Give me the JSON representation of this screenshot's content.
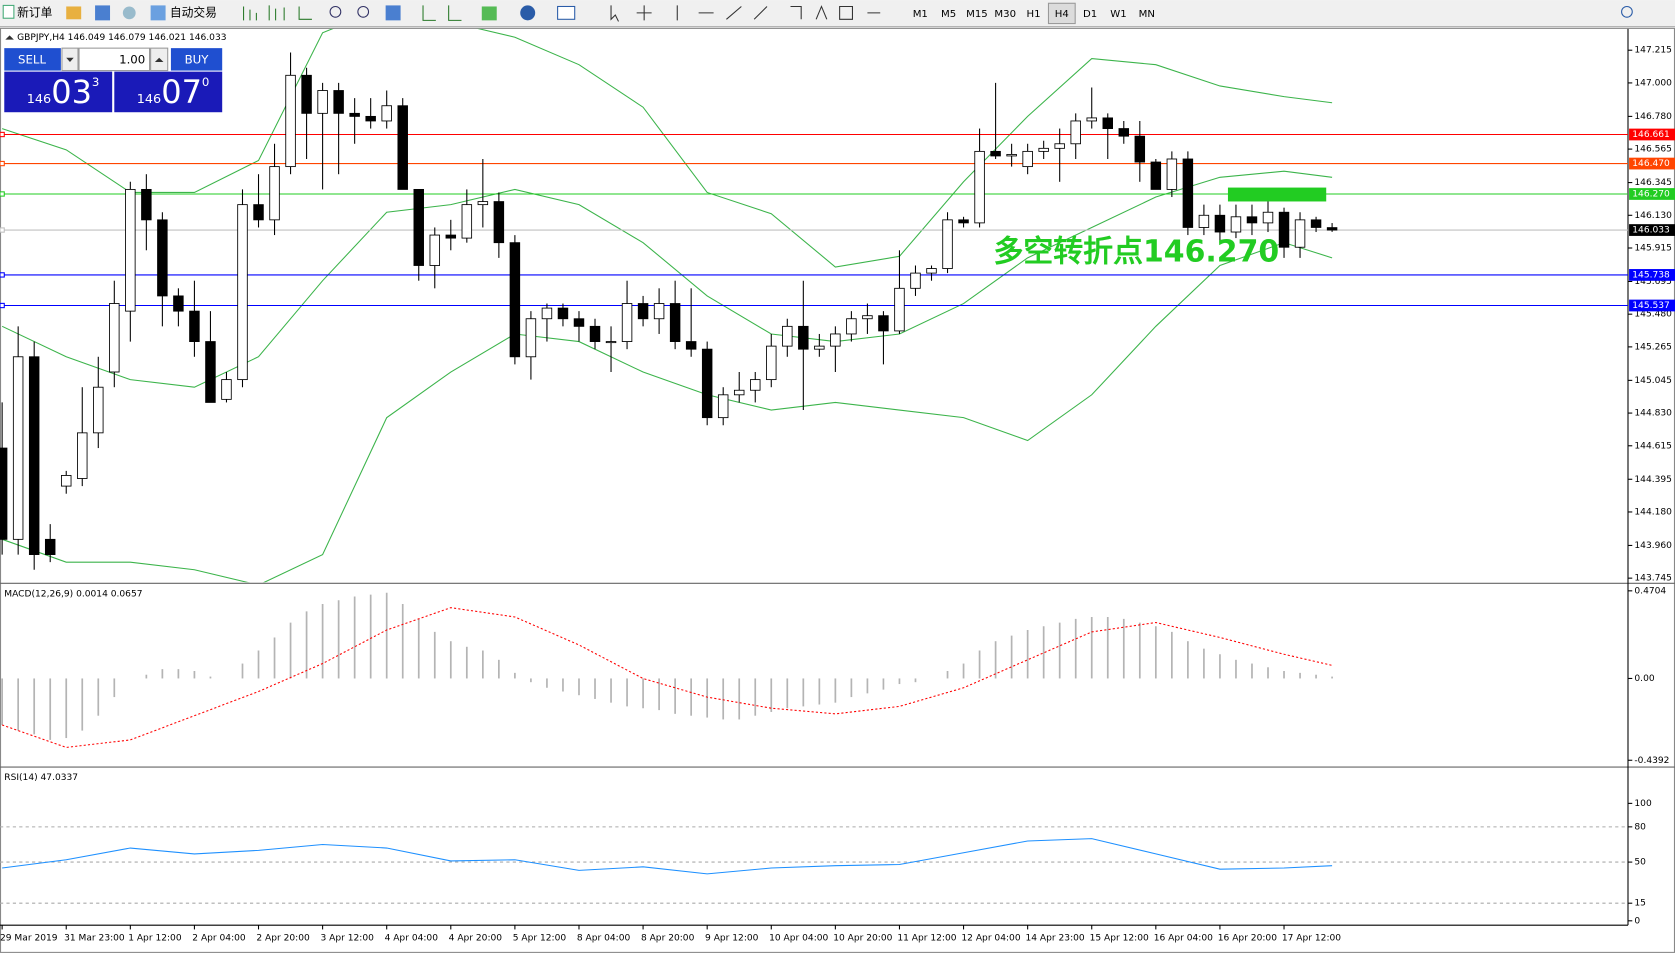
{
  "toolbar": {
    "new_order": "新订单",
    "auto_trading": "自动交易",
    "timeframes": [
      "M1",
      "M5",
      "M15",
      "M30",
      "H1",
      "H4",
      "D1",
      "W1",
      "MN"
    ],
    "active_timeframe": "H4"
  },
  "trade_panel": {
    "sell_label": "SELL",
    "buy_label": "BUY",
    "lot": "1.00",
    "sell_price": {
      "prefix": "146",
      "big": "03",
      "small": "3"
    },
    "buy_price": {
      "prefix": "146",
      "big": "07",
      "small": "0"
    }
  },
  "chart_data": [
    {
      "type": "candlestick",
      "title": "GBPJPY,H4 146.049 146.079 146.021 146.033",
      "categories": [
        "29 Mar 2019",
        null,
        null,
        null,
        "31 Mar 23:00",
        null,
        null,
        null,
        "1 Apr 12:00",
        null,
        null,
        null,
        "2 Apr 04:00",
        null,
        null,
        null,
        "2 Apr 20:00",
        null,
        null,
        null,
        "3 Apr 12:00",
        null,
        null,
        null,
        "4 Apr 04:00",
        null,
        null,
        null,
        "4 Apr 20:00",
        null,
        null,
        null,
        "5 Apr 12:00",
        null,
        null,
        null,
        "8 Apr 04:00",
        null,
        null,
        null,
        "8 Apr 20:00",
        null,
        null,
        null,
        "9 Apr 12:00",
        null,
        null,
        null,
        "10 Apr 04:00",
        null,
        null,
        null,
        "10 Apr 20:00",
        null,
        null,
        null,
        "11 Apr 12:00",
        null,
        null,
        null,
        "12 Apr 04:00",
        null,
        null,
        null,
        "14 Apr 23:00",
        null,
        null,
        null,
        "15 Apr 12:00",
        null,
        null,
        null,
        "16 Apr 04:00",
        null,
        null,
        null,
        "16 Apr 20:00",
        null,
        null,
        null,
        "17 Apr 12:00",
        null,
        null,
        null
      ],
      "open": [
        144.6,
        144.0,
        145.2,
        144.0,
        144.35,
        144.4,
        144.7,
        145.1,
        145.5,
        146.3,
        146.1,
        145.6,
        145.5,
        145.3,
        144.92,
        145.05,
        146.2,
        146.1,
        146.45,
        147.05,
        146.8,
        146.95,
        146.8,
        146.78,
        146.75,
        146.85,
        146.3,
        145.8,
        146.0,
        145.98,
        146.2,
        146.22,
        145.95,
        145.2,
        145.45,
        145.52,
        145.45,
        145.4,
        145.3,
        145.3,
        145.55,
        145.45,
        145.55,
        145.3,
        145.25,
        144.8,
        144.95,
        144.98,
        145.05,
        145.27,
        145.4,
        145.25,
        145.27,
        145.35,
        145.45,
        145.47,
        145.37,
        145.65,
        145.75,
        145.78,
        146.1,
        146.08,
        146.55,
        146.52,
        146.45,
        146.55,
        146.57,
        146.6,
        146.75,
        146.77,
        146.7,
        146.65,
        146.48,
        146.3,
        146.5,
        146.05,
        146.13,
        146.02,
        146.12,
        146.08,
        146.15,
        145.92,
        146.1,
        146.049
      ],
      "high": [
        144.9,
        145.4,
        145.3,
        144.1,
        144.45,
        145.0,
        145.2,
        145.7,
        146.35,
        146.4,
        146.15,
        145.65,
        145.7,
        145.5,
        145.1,
        146.3,
        146.4,
        146.6,
        147.2,
        147.1,
        147.0,
        147.0,
        146.9,
        146.9,
        146.95,
        146.9,
        146.3,
        146.05,
        146.1,
        146.3,
        146.5,
        146.28,
        146.0,
        145.5,
        145.55,
        145.55,
        145.5,
        145.45,
        145.4,
        145.7,
        145.6,
        145.65,
        145.7,
        145.65,
        145.3,
        145.0,
        145.1,
        145.1,
        145.35,
        145.45,
        145.7,
        145.35,
        145.4,
        145.5,
        145.55,
        145.5,
        145.9,
        145.8,
        145.8,
        146.15,
        146.12,
        146.7,
        147.0,
        146.6,
        146.6,
        146.62,
        146.7,
        146.8,
        146.97,
        146.8,
        146.75,
        146.75,
        146.5,
        146.55,
        146.55,
        146.2,
        146.2,
        146.2,
        146.2,
        146.25,
        146.18,
        146.15,
        146.12,
        146.079
      ],
      "low": [
        143.9,
        143.9,
        143.8,
        143.85,
        144.3,
        144.35,
        144.6,
        145.0,
        145.3,
        145.9,
        145.4,
        145.4,
        145.2,
        144.9,
        144.9,
        145.0,
        146.05,
        146.0,
        146.4,
        146.5,
        146.3,
        146.4,
        146.6,
        146.7,
        146.7,
        146.3,
        145.7,
        145.65,
        145.9,
        145.95,
        146.05,
        145.85,
        145.15,
        145.05,
        145.3,
        145.4,
        145.3,
        145.25,
        145.1,
        145.25,
        145.4,
        145.35,
        145.25,
        145.2,
        144.75,
        144.75,
        144.9,
        144.9,
        145.0,
        145.2,
        144.85,
        145.2,
        145.1,
        145.3,
        145.35,
        145.15,
        145.35,
        145.6,
        145.7,
        145.75,
        146.05,
        146.05,
        146.5,
        146.45,
        146.4,
        146.5,
        146.35,
        146.5,
        146.7,
        146.5,
        146.6,
        146.35,
        146.3,
        146.25,
        146.0,
        146.0,
        145.95,
        145.98,
        146.0,
        146.02,
        145.85,
        145.85,
        146.02,
        146.021
      ],
      "close": [
        144.0,
        145.2,
        143.9,
        143.9,
        144.42,
        144.7,
        145.0,
        145.55,
        146.3,
        146.1,
        145.6,
        145.5,
        145.3,
        144.9,
        145.05,
        146.2,
        146.1,
        146.45,
        147.05,
        146.8,
        146.95,
        146.8,
        146.78,
        146.75,
        146.85,
        146.3,
        145.8,
        146.0,
        145.98,
        146.2,
        146.22,
        145.95,
        145.2,
        145.45,
        145.52,
        145.45,
        145.4,
        145.3,
        145.3,
        145.55,
        145.45,
        145.55,
        145.3,
        145.25,
        144.8,
        144.95,
        144.98,
        145.05,
        145.27,
        145.4,
        145.25,
        145.27,
        145.35,
        145.45,
        145.47,
        145.37,
        145.65,
        145.75,
        145.78,
        146.1,
        146.08,
        146.55,
        146.52,
        146.53,
        146.55,
        146.57,
        146.6,
        146.75,
        146.77,
        146.7,
        146.65,
        146.48,
        146.3,
        146.5,
        146.05,
        146.13,
        146.02,
        146.12,
        146.08,
        146.15,
        145.92,
        146.1,
        146.05,
        146.033
      ],
      "up_color": "#ffffff",
      "down_color": "#000000",
      "bands": {
        "x": [
          0,
          4,
          8,
          12,
          16,
          20,
          24,
          28,
          32,
          36,
          40,
          44,
          48,
          52,
          56,
          60,
          64,
          68,
          72,
          76,
          80,
          83
        ],
        "series": [
          {
            "color": "#3cb44b",
            "values": [
              146.7,
              146.56,
              146.28,
              146.28,
              146.49,
              147.33,
              147.5,
              147.4,
              147.3,
              147.12,
              146.84,
              146.28,
              146.14,
              145.79,
              145.86,
              146.35,
              146.78,
              147.16,
              147.12,
              146.98,
              146.91,
              146.87
            ]
          },
          {
            "color": "#3cb44b",
            "values": [
              145.4,
              145.2,
              145.05,
              145.0,
              145.2,
              145.7,
              146.15,
              146.2,
              146.3,
              146.2,
              145.95,
              145.6,
              145.35,
              145.3,
              145.35,
              145.55,
              145.85,
              146.05,
              146.25,
              146.38,
              146.42,
              146.38
            ]
          },
          {
            "color": "#3cb44b",
            "values": [
              144.0,
              143.85,
              143.85,
              143.8,
              143.7,
              143.9,
              144.8,
              145.1,
              145.35,
              145.3,
              145.1,
              144.95,
              144.85,
              144.9,
              144.85,
              144.8,
              144.65,
              144.95,
              145.4,
              145.8,
              145.95,
              145.85
            ]
          }
        ]
      },
      "levels": [
        {
          "value": 146.661,
          "color": "#ff0000"
        },
        {
          "value": 146.47,
          "label": "146.470",
          "color": "#ff4500"
        },
        {
          "value": 146.27,
          "label": "146.270",
          "color": "#22cc22"
        },
        {
          "value": 146.033,
          "color": "#c0c0c0",
          "label_fill": "#000000"
        },
        {
          "value": 145.738,
          "color": "#0000ff"
        },
        {
          "value": 145.537,
          "color": "#0000ff"
        }
      ],
      "annotation": {
        "text": "多空转折点146.270",
        "color": "#22cc22"
      },
      "ylim": [
        143.718,
        147.355
      ],
      "yticks": [
        147.215,
        {
          "value": 147,
          "label": "147.000"
        },
        {
          "value": 146.78,
          "label": "146.780"
        },
        146.565,
        146.345,
        {
          "value": 146.13,
          "label": "146.130"
        },
        145.915,
        145.695,
        {
          "value": 145.48,
          "label": "145.480"
        },
        145.265,
        145.045,
        {
          "value": 144.83,
          "label": "144.830"
        },
        144.615,
        144.395,
        {
          "value": 144.18,
          "label": "144.180"
        },
        {
          "value": 143.96,
          "label": "143.960"
        },
        143.745
      ]
    },
    {
      "type": "macd",
      "title": "MACD(12,26,9) 0.0014 0.0657",
      "values": [
        -0.25,
        -0.28,
        -0.3,
        -0.33,
        -0.32,
        -0.28,
        -0.2,
        -0.1,
        0.0,
        0.02,
        0.05,
        0.05,
        0.04,
        0.01,
        0.0,
        0.08,
        0.15,
        0.22,
        0.3,
        0.36,
        0.4,
        0.42,
        0.44,
        0.45,
        0.46,
        0.4,
        0.32,
        0.25,
        0.2,
        0.17,
        0.15,
        0.1,
        0.03,
        -0.02,
        -0.05,
        -0.07,
        -0.09,
        -0.11,
        -0.13,
        -0.15,
        -0.16,
        -0.17,
        -0.19,
        -0.2,
        -0.21,
        -0.22,
        -0.22,
        -0.2,
        -0.18,
        -0.16,
        -0.15,
        -0.14,
        -0.13,
        -0.1,
        -0.08,
        -0.06,
        -0.03,
        -0.02,
        0.0,
        0.04,
        0.08,
        0.15,
        0.2,
        0.23,
        0.26,
        0.28,
        0.3,
        0.32,
        0.33,
        0.33,
        0.32,
        0.3,
        0.28,
        0.25,
        0.2,
        0.16,
        0.13,
        0.1,
        0.08,
        0.06,
        0.04,
        0.03,
        0.02,
        0.01
      ],
      "color": "#b4b4b4",
      "signal": {
        "x": [
          0,
          4,
          8,
          12,
          16,
          20,
          24,
          28,
          32,
          36,
          40,
          44,
          48,
          52,
          56,
          60,
          64,
          68,
          72,
          76,
          80,
          83
        ],
        "values": [
          -0.25,
          -0.37,
          -0.33,
          -0.2,
          -0.07,
          0.08,
          0.26,
          0.38,
          0.33,
          0.18,
          0.0,
          -0.1,
          -0.16,
          -0.19,
          -0.15,
          -0.05,
          0.1,
          0.25,
          0.3,
          0.22,
          0.13,
          0.07
        ],
        "color": "#ff0000"
      },
      "ylim": [
        -0.47,
        0.505
      ],
      "yticks": [
        0.4704,
        {
          "value": 0,
          "label": "0.00"
        },
        -0.4392
      ]
    },
    {
      "type": "line",
      "title": "RSI(14) 47.0337",
      "x": [
        0,
        4,
        8,
        12,
        16,
        20,
        24,
        28,
        32,
        36,
        40,
        44,
        48,
        52,
        56,
        60,
        64,
        68,
        72,
        76,
        80,
        83
      ],
      "values": [
        45,
        52,
        62,
        57,
        60,
        65,
        62,
        51,
        52,
        43,
        46,
        40,
        45,
        47,
        48,
        58,
        68,
        70,
        57,
        44,
        45,
        47
      ],
      "color": "#1e90ff",
      "ylim": [
        -3.7,
        130
      ],
      "yticks": [
        100,
        80,
        50,
        15,
        0
      ]
    }
  ]
}
